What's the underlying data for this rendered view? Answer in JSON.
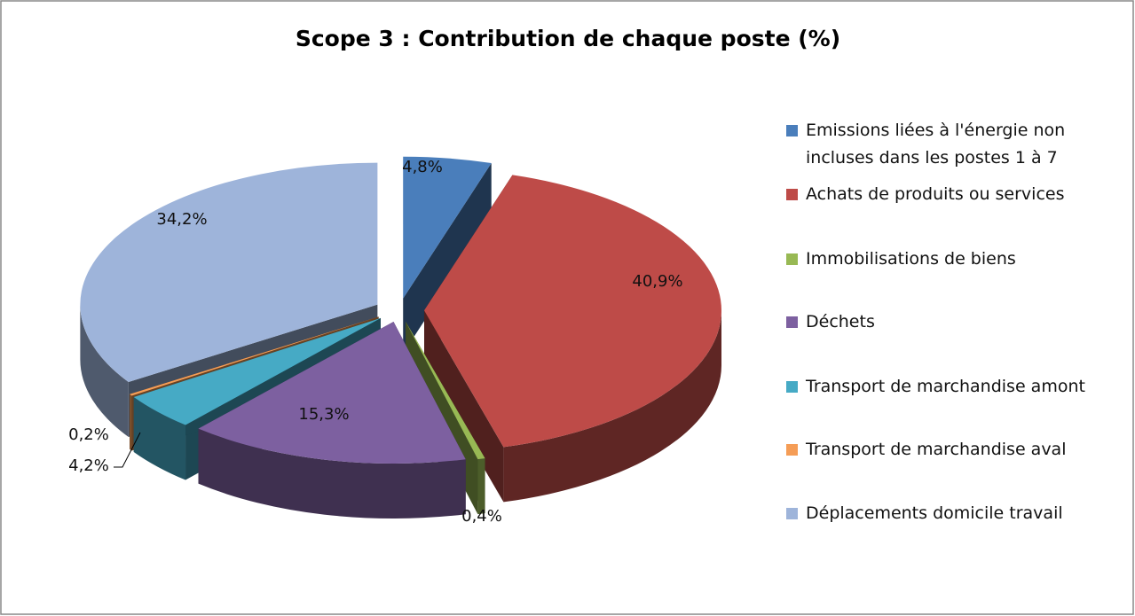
{
  "chart_data": {
    "type": "pie",
    "title": "Scope 3 : Contribution de chaque poste (%)",
    "categories": [
      "Emissions liées à l'énergie non incluses dans les postes 1 à 7",
      "Achats de produits ou services",
      "Immobilisations de biens",
      "Déchets",
      "Transport de marchandise amont",
      "Transport de marchandise aval",
      "Déplacements domicile travail"
    ],
    "values": [
      4.8,
      40.9,
      0.4,
      15.3,
      4.2,
      0.2,
      34.2
    ],
    "value_labels": [
      "4,8%",
      "40,9%",
      "0,4%",
      "15,3%",
      "4,2%",
      "0,2%",
      "34,2%"
    ],
    "colors": [
      "#4a7ebb",
      "#be4b48",
      "#98b954",
      "#7d60a0",
      "#46aac5",
      "#f59d56",
      "#9eb4da"
    ],
    "legend": "right"
  }
}
